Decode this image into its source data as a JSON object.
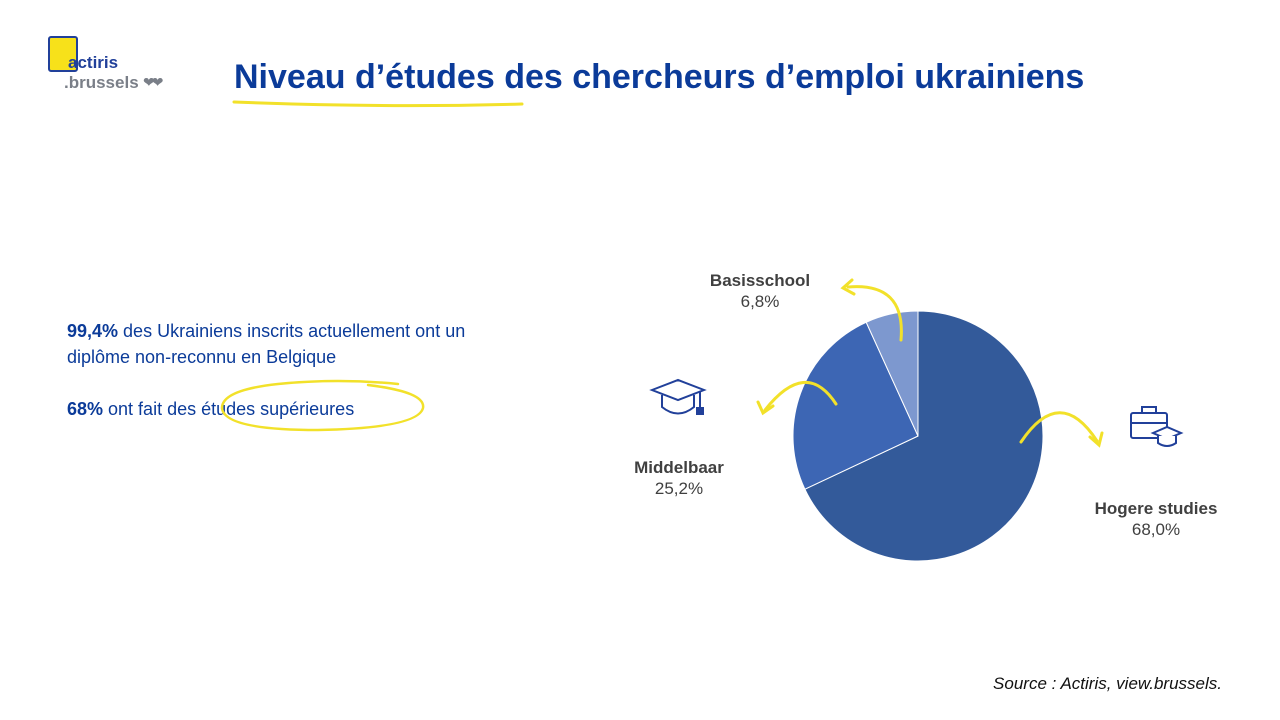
{
  "logo": {
    "line1": "actiris",
    "line2": ".brussels",
    "hearts": "❤❤"
  },
  "title": "Niveau d’études des chercheurs d’emploi ukrainiens",
  "stats": {
    "p1_bold": "99,4%",
    "p1_rest": " des Ukrainiens inscrits actuellement ont un diplôme non-reconnu en Belgique",
    "p2_bold": "68%",
    "p2_mid": " ont fait des ",
    "p2_highlight": "études supérieures"
  },
  "chart_data": {
    "type": "pie",
    "slices": [
      {
        "name": "Hogere studies",
        "label": "68,0%",
        "value": 68.0,
        "color": "#335a9a"
      },
      {
        "name": "Middelbaar",
        "label": "25,2%",
        "value": 25.2,
        "color": "#3d66b4"
      },
      {
        "name": "Basisschool",
        "label": "6,8%",
        "value": 6.8,
        "color": "#7d98cf"
      }
    ]
  },
  "icons": {
    "graduation": "graduation-cap-icon",
    "briefcase": "briefcase-graduation-icon"
  },
  "colors": {
    "accent_yellow": "#f2e12a",
    "brand_blue": "#0b3b99"
  },
  "source": "Source : Actiris, view.brussels."
}
